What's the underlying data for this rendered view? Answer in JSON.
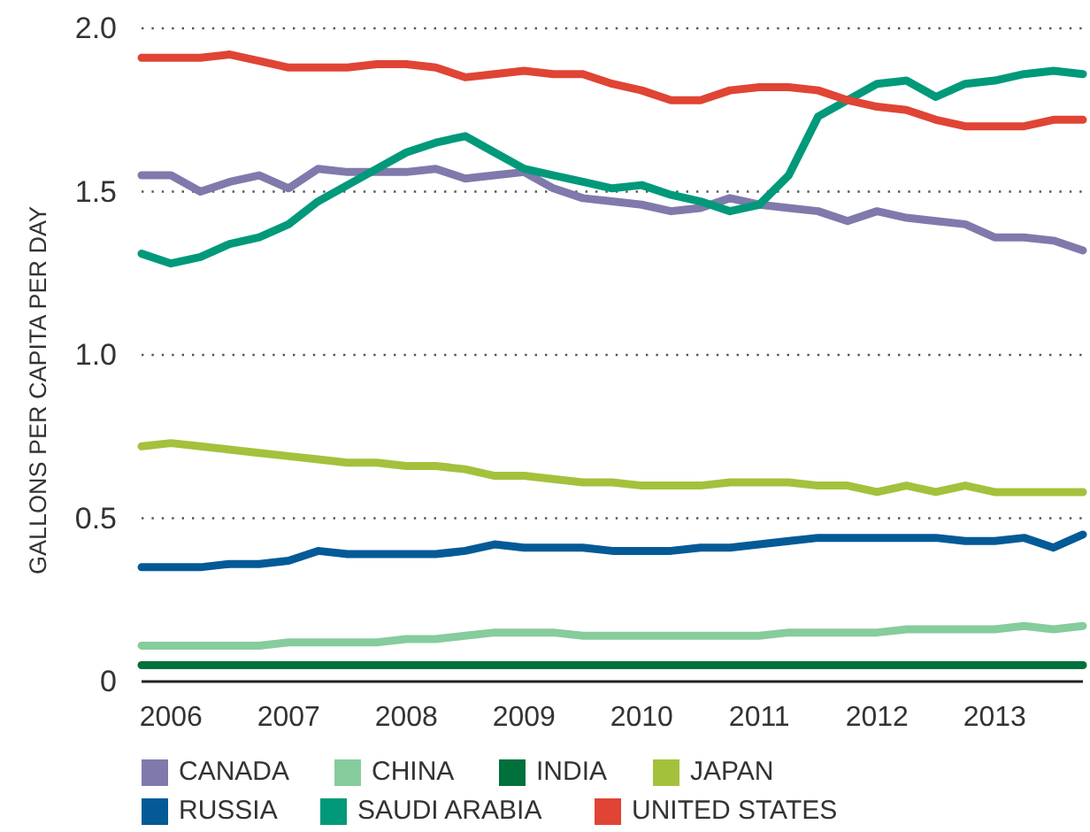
{
  "chart_data": {
    "type": "line",
    "ylabel": "GALLONS PER CAPITA PER DAY",
    "x": [
      2006.25,
      2006.5,
      2006.75,
      2007,
      2007.25,
      2007.5,
      2007.75,
      2008,
      2008.25,
      2008.5,
      2008.75,
      2009,
      2009.25,
      2009.5,
      2009.75,
      2010,
      2010.25,
      2010.5,
      2010.75,
      2011,
      2011.25,
      2011.5,
      2011.75,
      2012,
      2012.25,
      2012.5,
      2012.75,
      2013,
      2013.25,
      2013.5,
      2013.75,
      2014,
      2014.25
    ],
    "xlim": [
      2006.25,
      2014.25
    ],
    "xticks": [
      {
        "value": 2006.5,
        "label": "2006"
      },
      {
        "value": 2007.5,
        "label": "2007"
      },
      {
        "value": 2008.5,
        "label": "2008"
      },
      {
        "value": 2009.5,
        "label": "2009"
      },
      {
        "value": 2010.5,
        "label": "2010"
      },
      {
        "value": 2011.5,
        "label": "2011"
      },
      {
        "value": 2012.5,
        "label": "2012"
      },
      {
        "value": 2013.5,
        "label": "2013"
      }
    ],
    "ylim": [
      0,
      2
    ],
    "yticks": [
      0,
      {
        "value": 0.5,
        "label": "0.5"
      },
      {
        "value": 1,
        "label": "1.0"
      },
      {
        "value": 1.5,
        "label": "1.5"
      },
      {
        "value": 2,
        "label": "2.0"
      }
    ],
    "grid": "y",
    "legend": "bottom",
    "line_style": "solid",
    "marker": "none",
    "series": [
      {
        "name": "CANADA",
        "color": "#7f7aab",
        "values": [
          1.55,
          1.55,
          1.5,
          1.53,
          1.55,
          1.51,
          1.57,
          1.56,
          1.56,
          1.56,
          1.57,
          1.54,
          1.55,
          1.56,
          1.51,
          1.48,
          1.47,
          1.46,
          1.44,
          1.45,
          1.48,
          1.46,
          1.45,
          1.44,
          1.41,
          1.44,
          1.42,
          1.41,
          1.4,
          1.36,
          1.36,
          1.35,
          1.32
        ]
      },
      {
        "name": "CHINA",
        "color": "#86cc9c",
        "values": [
          0.11,
          0.11,
          0.11,
          0.11,
          0.11,
          0.12,
          0.12,
          0.12,
          0.12,
          0.13,
          0.13,
          0.14,
          0.15,
          0.15,
          0.15,
          0.14,
          0.14,
          0.14,
          0.14,
          0.14,
          0.14,
          0.14,
          0.15,
          0.15,
          0.15,
          0.15,
          0.16,
          0.16,
          0.16,
          0.16,
          0.17,
          0.16,
          0.17
        ]
      },
      {
        "name": "INDIA",
        "color": "#00703c",
        "values": [
          0.05,
          0.05,
          0.05,
          0.05,
          0.05,
          0.05,
          0.05,
          0.05,
          0.05,
          0.05,
          0.05,
          0.05,
          0.05,
          0.05,
          0.05,
          0.05,
          0.05,
          0.05,
          0.05,
          0.05,
          0.05,
          0.05,
          0.05,
          0.05,
          0.05,
          0.05,
          0.05,
          0.05,
          0.05,
          0.05,
          0.05,
          0.05,
          0.05
        ]
      },
      {
        "name": "JAPAN",
        "color": "#a4c13c",
        "values": [
          0.72,
          0.73,
          0.72,
          0.71,
          0.7,
          0.69,
          0.68,
          0.67,
          0.67,
          0.66,
          0.66,
          0.65,
          0.63,
          0.63,
          0.62,
          0.61,
          0.61,
          0.6,
          0.6,
          0.6,
          0.61,
          0.61,
          0.61,
          0.6,
          0.6,
          0.58,
          0.6,
          0.58,
          0.6,
          0.58,
          0.58,
          0.58,
          0.58
        ]
      },
      {
        "name": "RUSSIA",
        "color": "#045a96",
        "values": [
          0.35,
          0.35,
          0.35,
          0.36,
          0.36,
          0.37,
          0.4,
          0.39,
          0.39,
          0.39,
          0.39,
          0.4,
          0.42,
          0.41,
          0.41,
          0.41,
          0.4,
          0.4,
          0.4,
          0.41,
          0.41,
          0.42,
          0.43,
          0.44,
          0.44,
          0.44,
          0.44,
          0.44,
          0.43,
          0.43,
          0.44,
          0.41,
          0.45
        ]
      },
      {
        "name": "SAUDI ARABIA",
        "color": "#00997a",
        "values": [
          1.31,
          1.28,
          1.3,
          1.34,
          1.36,
          1.4,
          1.47,
          1.52,
          1.57,
          1.62,
          1.65,
          1.67,
          1.62,
          1.57,
          1.55,
          1.53,
          1.51,
          1.52,
          1.49,
          1.47,
          1.44,
          1.46,
          1.55,
          1.73,
          1.78,
          1.83,
          1.84,
          1.79,
          1.83,
          1.84,
          1.86,
          1.87,
          1.86
        ]
      },
      {
        "name": "UNITED STATES",
        "color": "#e04434",
        "values": [
          1.91,
          1.91,
          1.91,
          1.92,
          1.9,
          1.88,
          1.88,
          1.88,
          1.89,
          1.89,
          1.88,
          1.85,
          1.86,
          1.87,
          1.86,
          1.86,
          1.83,
          1.81,
          1.78,
          1.78,
          1.81,
          1.82,
          1.82,
          1.81,
          1.78,
          1.76,
          1.75,
          1.72,
          1.7,
          1.7,
          1.7,
          1.72,
          1.72
        ]
      }
    ]
  }
}
